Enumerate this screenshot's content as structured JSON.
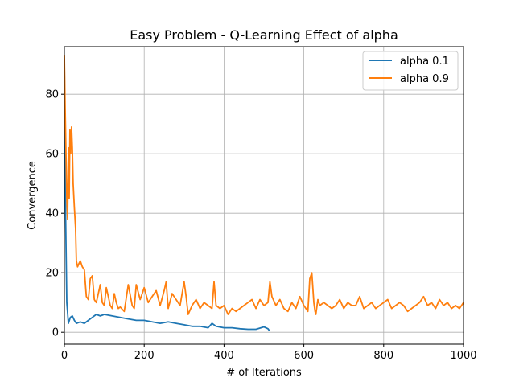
{
  "chart_data": {
    "type": "line",
    "title": "Easy Problem - Q-Learning Effect of alpha",
    "xlabel": "# of Iterations",
    "ylabel": "Convergence",
    "xlim": [
      0,
      1000
    ],
    "ylim": [
      -4,
      96
    ],
    "xticks": [
      0,
      200,
      400,
      600,
      800,
      1000
    ],
    "yticks": [
      0,
      20,
      40,
      60,
      80
    ],
    "grid": true,
    "legend": "top-right",
    "series": [
      {
        "name": "alpha 0.1",
        "color": "#1f77b4",
        "x": [
          0,
          3,
          6,
          10,
          15,
          20,
          25,
          30,
          40,
          50,
          60,
          70,
          80,
          90,
          100,
          120,
          140,
          160,
          180,
          200,
          220,
          240,
          260,
          280,
          300,
          320,
          340,
          360,
          370,
          380,
          400,
          420,
          440,
          460,
          480,
          500,
          510,
          514
        ],
        "y": [
          92,
          40,
          10,
          3,
          5,
          5.5,
          4,
          3,
          3.5,
          3,
          4,
          5,
          6,
          5.5,
          6,
          5.5,
          5,
          4.5,
          4,
          4,
          3.5,
          3,
          3.5,
          3,
          2.5,
          2,
          2,
          1.5,
          3,
          2,
          1.5,
          1.5,
          1.2,
          1,
          1,
          1.8,
          1.2,
          0.5
        ]
      },
      {
        "name": "alpha 0.9",
        "color": "#ff7f0e",
        "x": [
          0,
          2,
          4,
          6,
          8,
          10,
          12,
          14,
          16,
          18,
          20,
          22,
          25,
          28,
          30,
          33,
          36,
          40,
          45,
          50,
          55,
          60,
          65,
          70,
          75,
          80,
          85,
          90,
          95,
          100,
          105,
          110,
          115,
          120,
          125,
          130,
          135,
          140,
          150,
          160,
          170,
          175,
          180,
          190,
          200,
          210,
          220,
          230,
          240,
          250,
          255,
          260,
          270,
          280,
          290,
          300,
          305,
          310,
          320,
          330,
          340,
          350,
          360,
          370,
          375,
          380,
          390,
          400,
          410,
          420,
          430,
          440,
          450,
          460,
          470,
          480,
          490,
          500,
          510,
          515,
          520,
          530,
          540,
          550,
          560,
          570,
          580,
          590,
          600,
          610,
          615,
          620,
          625,
          628,
          630,
          635,
          640,
          650,
          660,
          670,
          680,
          690,
          700,
          710,
          720,
          730,
          740,
          750,
          760,
          770,
          780,
          790,
          800,
          810,
          820,
          830,
          840,
          850,
          860,
          870,
          880,
          890,
          900,
          910,
          920,
          930,
          940,
          950,
          960,
          970,
          980,
          990,
          1000
        ],
        "y": [
          93,
          75,
          60,
          45,
          38,
          62,
          45,
          68,
          60,
          69,
          62,
          50,
          42,
          35,
          24,
          22,
          23,
          24,
          22,
          21,
          12,
          11,
          18,
          19,
          11,
          10,
          13,
          16,
          10,
          9,
          15,
          12,
          9,
          8,
          13,
          10,
          8,
          8.5,
          7,
          16,
          9,
          8,
          16,
          11,
          15,
          10,
          12,
          14,
          9,
          14,
          17,
          8,
          13,
          11,
          9,
          17,
          12,
          6,
          9,
          11,
          8,
          10,
          9,
          8,
          17,
          9,
          8,
          9,
          6,
          8,
          7,
          8,
          9,
          10,
          11,
          8,
          11,
          9,
          10,
          17,
          12,
          9,
          11,
          8,
          7,
          10,
          8,
          12,
          9,
          7,
          18,
          20,
          10,
          7,
          6,
          11,
          9,
          10,
          9,
          8,
          9,
          11,
          8,
          10,
          9,
          9,
          12,
          8,
          9,
          10,
          8,
          9,
          10,
          11,
          8,
          9,
          10,
          9,
          7,
          8,
          9,
          10,
          12,
          9,
          10,
          8,
          11,
          9,
          10,
          8,
          9,
          8,
          10
        ]
      }
    ]
  }
}
